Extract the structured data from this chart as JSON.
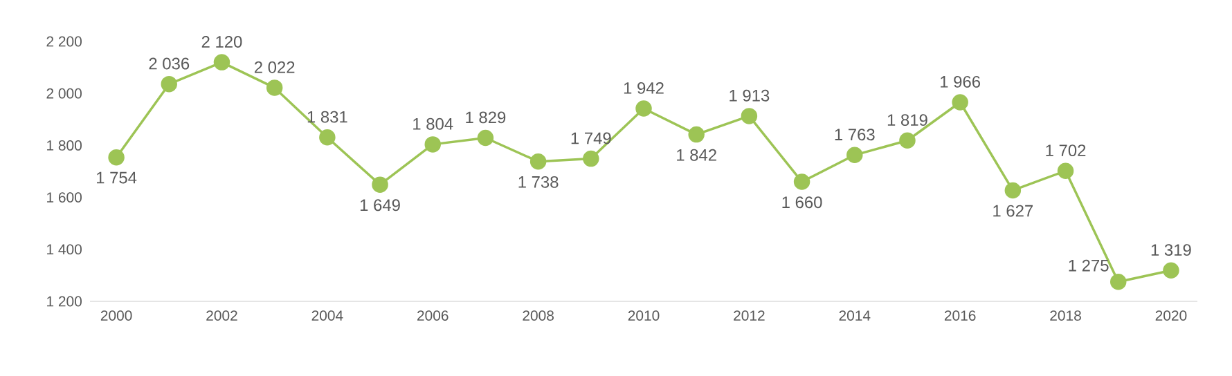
{
  "chart_data": {
    "type": "line",
    "x": [
      2000,
      2001,
      2002,
      2003,
      2004,
      2005,
      2006,
      2007,
      2008,
      2009,
      2010,
      2011,
      2012,
      2013,
      2014,
      2015,
      2016,
      2017,
      2018,
      2019,
      2020
    ],
    "values": [
      1754,
      2036,
      2120,
      2022,
      1831,
      1649,
      1804,
      1829,
      1738,
      1749,
      1942,
      1842,
      1913,
      1660,
      1763,
      1819,
      1966,
      1627,
      1702,
      1275,
      1319
    ],
    "value_labels": [
      "1 754",
      "2 036",
      "2 120",
      "2 022",
      "1 831",
      "1 649",
      "1 804",
      "1 829",
      "1 738",
      "1 749",
      "1 942",
      "1 842",
      "1 913",
      "1 660",
      "1 763",
      "1 819",
      "1 966",
      "1 627",
      "1 702",
      "1 275",
      "1 319"
    ],
    "color": "#9dc455",
    "marker": "circle",
    "line_style": "solid",
    "xlim": [
      1999.5,
      2020.5
    ],
    "ylim": [
      1200,
      2200
    ],
    "xticks": [
      2000,
      2002,
      2004,
      2006,
      2008,
      2010,
      2012,
      2014,
      2016,
      2018,
      2020
    ],
    "yticks": [
      {
        "value": 1200,
        "label": "1 200"
      },
      {
        "value": 1400,
        "label": "1 400"
      },
      {
        "value": 1600,
        "label": "1 600"
      },
      {
        "value": 1800,
        "label": "1 800"
      },
      {
        "value": 2000,
        "label": "2 000"
      },
      {
        "value": 2200,
        "label": "2 200"
      }
    ]
  }
}
